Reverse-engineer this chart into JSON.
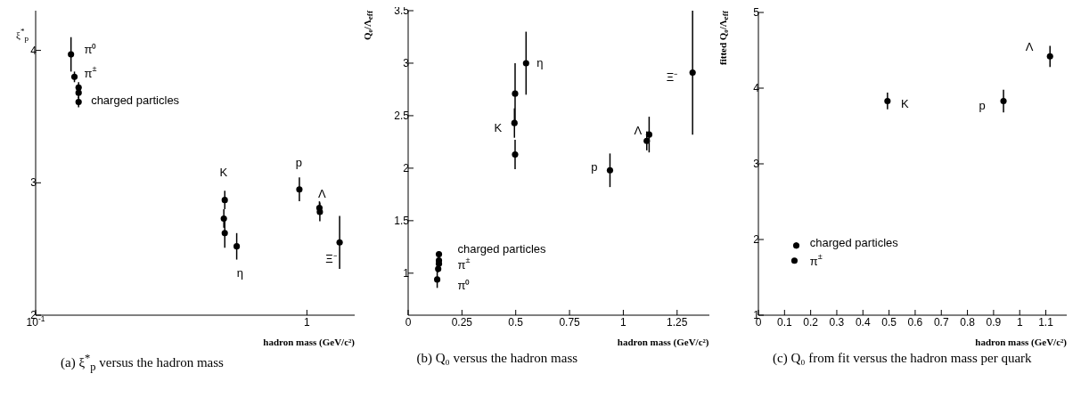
{
  "chart_data": [
    {
      "type": "scatter",
      "xlabel": "hadron mass (GeV/c²)",
      "ylabel": "ξ$^{*}$$_{p}$",
      "log": "x",
      "marker": "circle",
      "color": "#000000",
      "xlim": [
        0.1,
        1.5
      ],
      "ylim": [
        2,
        4.3
      ],
      "xticks": [
        {
          "value": 0.1,
          "label": "10$^{-1}$"
        },
        1
      ],
      "yticks": [
        2,
        3,
        4
      ],
      "x": [
        0.135,
        0.139,
        0.144,
        0.144,
        0.144,
        0.498,
        0.494,
        0.498,
        0.551,
        0.938,
        1.112,
        1.116,
        1.32
      ],
      "values": [
        3.97,
        3.8,
        3.72,
        3.68,
        3.61,
        2.87,
        2.73,
        2.62,
        2.52,
        2.95,
        2.81,
        2.78,
        2.55
      ],
      "errors": [
        0.13,
        0.04,
        0.04,
        0.04,
        0.04,
        0.07,
        0.07,
        0.11,
        0.1,
        0.09,
        0.05,
        0.07,
        0.2
      ],
      "annotations": [
        "π⁰",
        "π$^{±}$",
        "charged particles",
        "K",
        "η",
        "p",
        "Λ",
        "Ξ⁻",
        "(a) ξ$^{*}$$_{p}$ versus the hadron mass"
      ]
    },
    {
      "type": "scatter",
      "xlabel": "hadron mass (GeV/c²)",
      "ylabel": "Q₀/Λ$_{eff}$",
      "marker": "circle",
      "color": "#000000",
      "xlim": [
        0,
        1.4
      ],
      "ylim": [
        0.6,
        3.5
      ],
      "xticks": [
        0,
        0.25,
        0.5,
        0.75,
        1,
        1.25
      ],
      "yticks": [
        1,
        1.5,
        2,
        2.5,
        3,
        3.5
      ],
      "x": [
        0.135,
        0.1396,
        0.143,
        0.143,
        0.143,
        0.497,
        0.494,
        0.497,
        0.548,
        0.938,
        1.109,
        1.12,
        1.322
      ],
      "values": [
        0.94,
        1.04,
        1.18,
        1.12,
        1.09,
        2.71,
        2.43,
        2.13,
        3.0,
        1.98,
        2.26,
        2.32,
        2.91
      ],
      "errors": [
        0.08,
        0.03,
        0.03,
        0.03,
        0.03,
        0.29,
        0.14,
        0.14,
        0.3,
        0.16,
        0.09,
        0.17,
        0.59
      ],
      "annotations": [
        "η",
        "K",
        "p",
        "Λ",
        "Ξ⁻",
        "charged particles",
        "π$^{±}$",
        "π⁰",
        "(b) Q₀ versus the hadron mass"
      ]
    },
    {
      "type": "scatter",
      "xlabel": "hadron mass (GeV/c²)",
      "ylabel": "fitted Q₀/Λ$_{eff}$",
      "marker": "circle",
      "color": "#000000",
      "xlim": [
        0,
        1.18
      ],
      "ylim": [
        1,
        5
      ],
      "xticks": [
        0,
        0.1,
        0.2,
        0.3,
        0.4,
        0.5,
        0.6,
        0.7,
        0.8,
        0.9,
        1,
        1.1
      ],
      "yticks": [
        1,
        2,
        3,
        4,
        5
      ],
      "x": [
        0.145,
        0.138,
        0.494,
        0.938,
        1.116
      ],
      "values": [
        1.92,
        1.72,
        3.83,
        3.83,
        4.42
      ],
      "errors": [
        0.04,
        null,
        0.11,
        0.15,
        0.14
      ],
      "annotations": [
        "K",
        "p",
        "Λ",
        "charged particles",
        "π$^{±}$",
        "(c) Q₀ from fit versus the hadron mass per quark"
      ]
    }
  ]
}
